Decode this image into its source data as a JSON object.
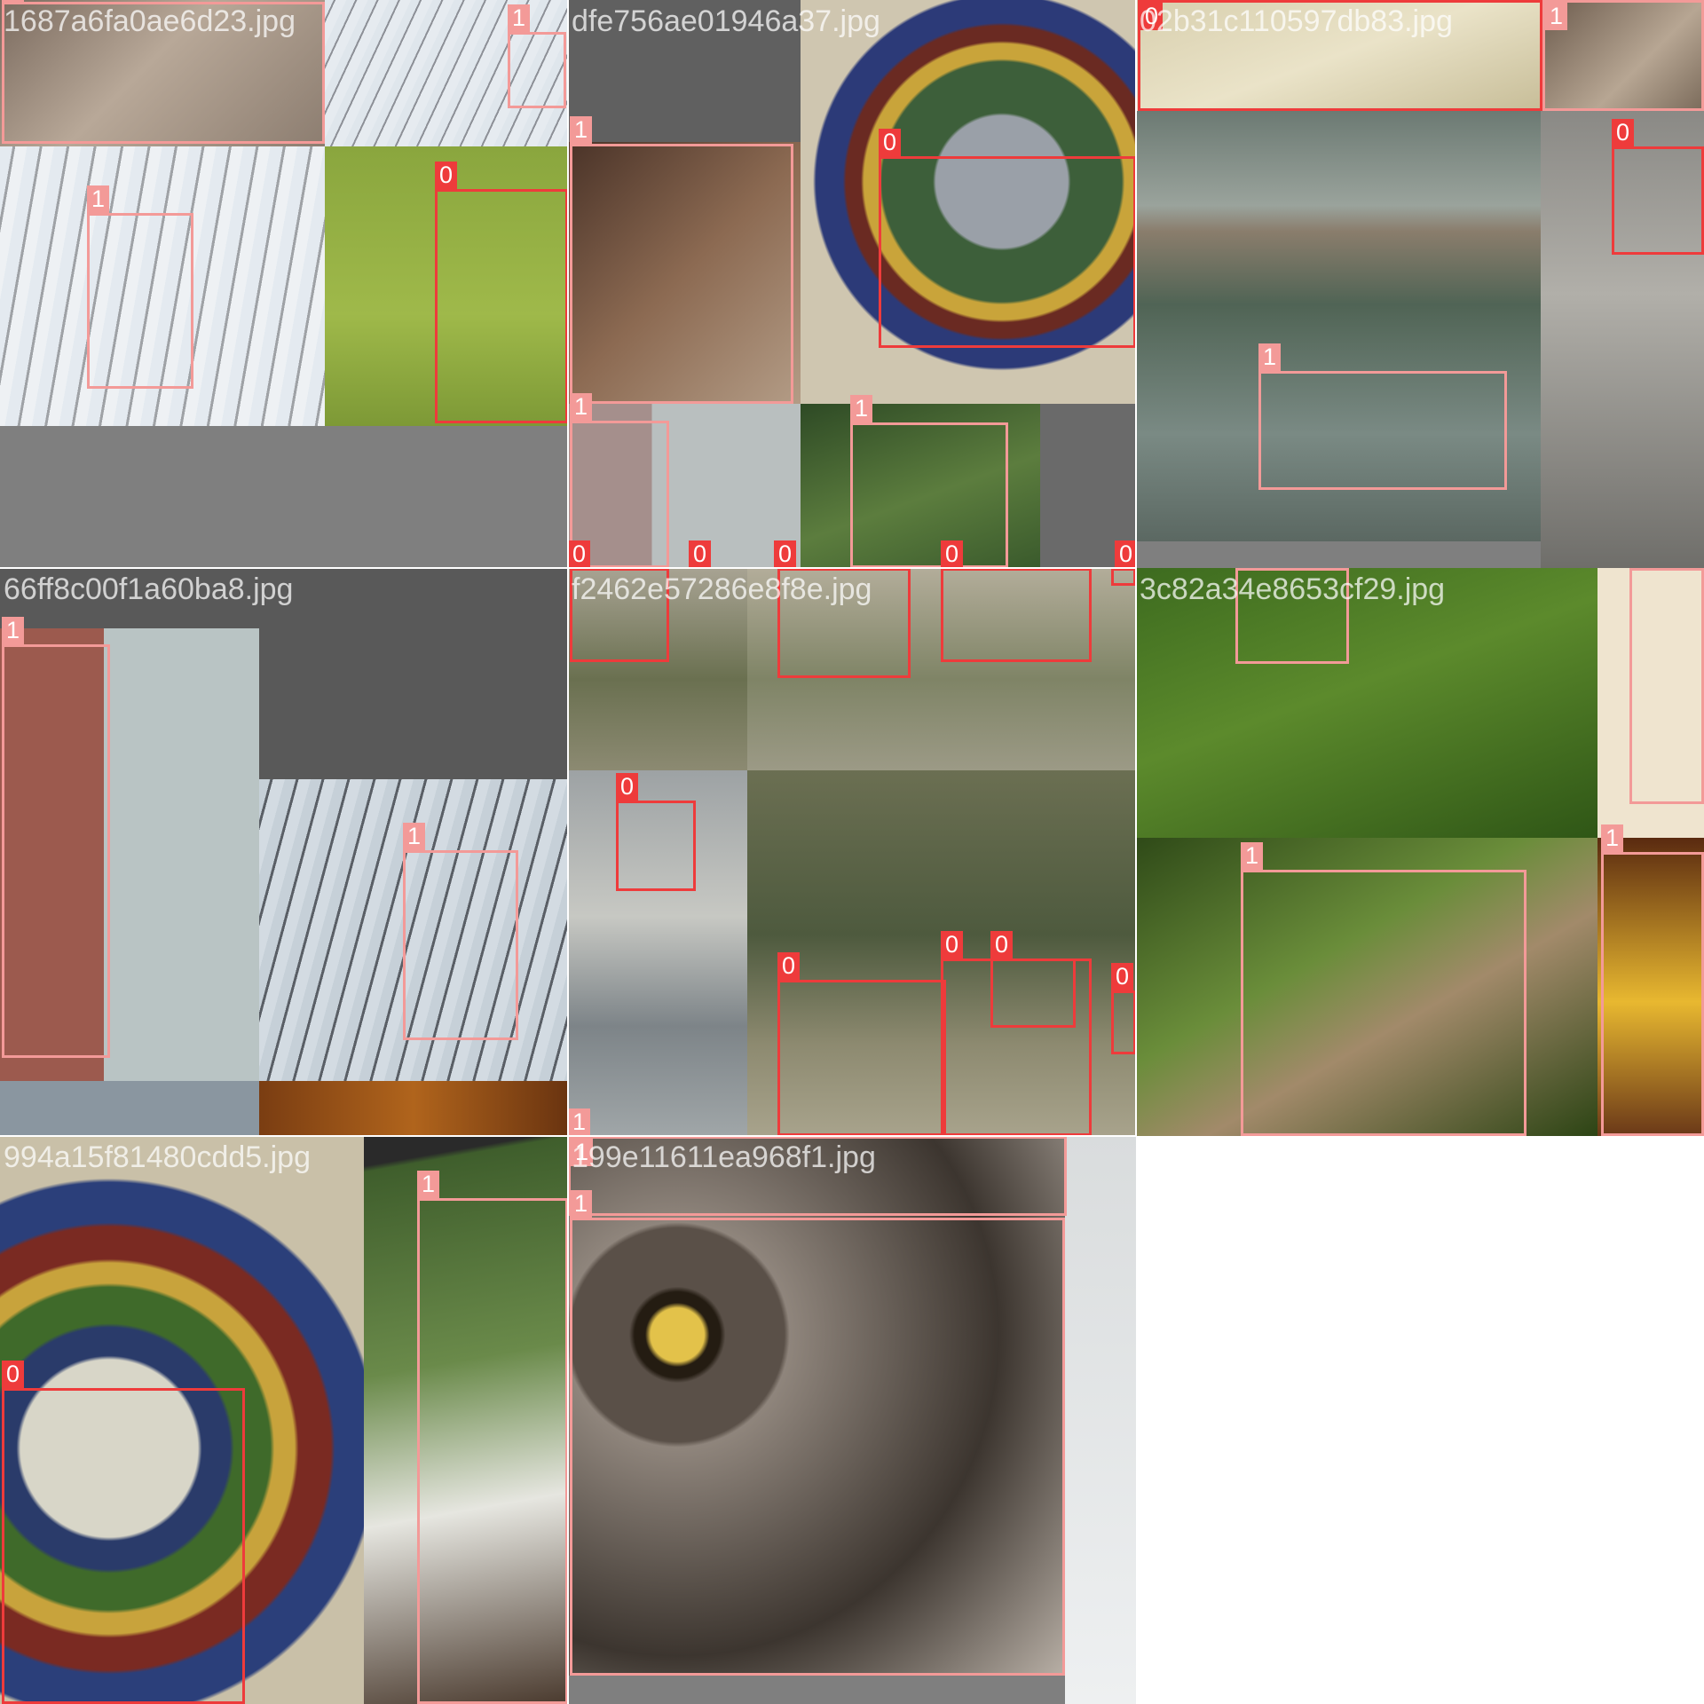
{
  "grid": {
    "title": "",
    "background": "#ffffff",
    "class_colors": {
      "0": "#ee3b3b",
      "1": "#f39a98"
    },
    "tiles": [
      {
        "filename": "1687a6fa0ae6d23.jpg",
        "labels": [
          "1",
          "1",
          "1",
          "0"
        ]
      },
      {
        "filename": "dfe756ae01946a37.jpg",
        "labels": [
          "1",
          "0",
          "1",
          "1",
          "0",
          "0",
          "0",
          "0",
          "0"
        ]
      },
      {
        "filename": "02b31c110597db83.jpg",
        "labels": [
          "0",
          "1",
          "0",
          "1"
        ]
      },
      {
        "filename": "66ff8c00f1a60ba8.jpg",
        "labels": [
          "1",
          "1"
        ]
      },
      {
        "filename": "f2462e57286e8f8e.jpg",
        "labels": [
          "0",
          "0",
          "0",
          "0",
          "0",
          "0",
          "0",
          "0",
          "0",
          "1"
        ]
      },
      {
        "filename": "3c82a34e8653cf29.jpg",
        "labels": [
          "1",
          "1",
          "1",
          "1"
        ]
      },
      {
        "filename": "994a15f81480cdd5.jpg",
        "labels": [
          "0",
          "1"
        ]
      },
      {
        "filename": "199e11611ea968f1.jpg",
        "labels": [
          "1",
          "1"
        ]
      }
    ]
  }
}
